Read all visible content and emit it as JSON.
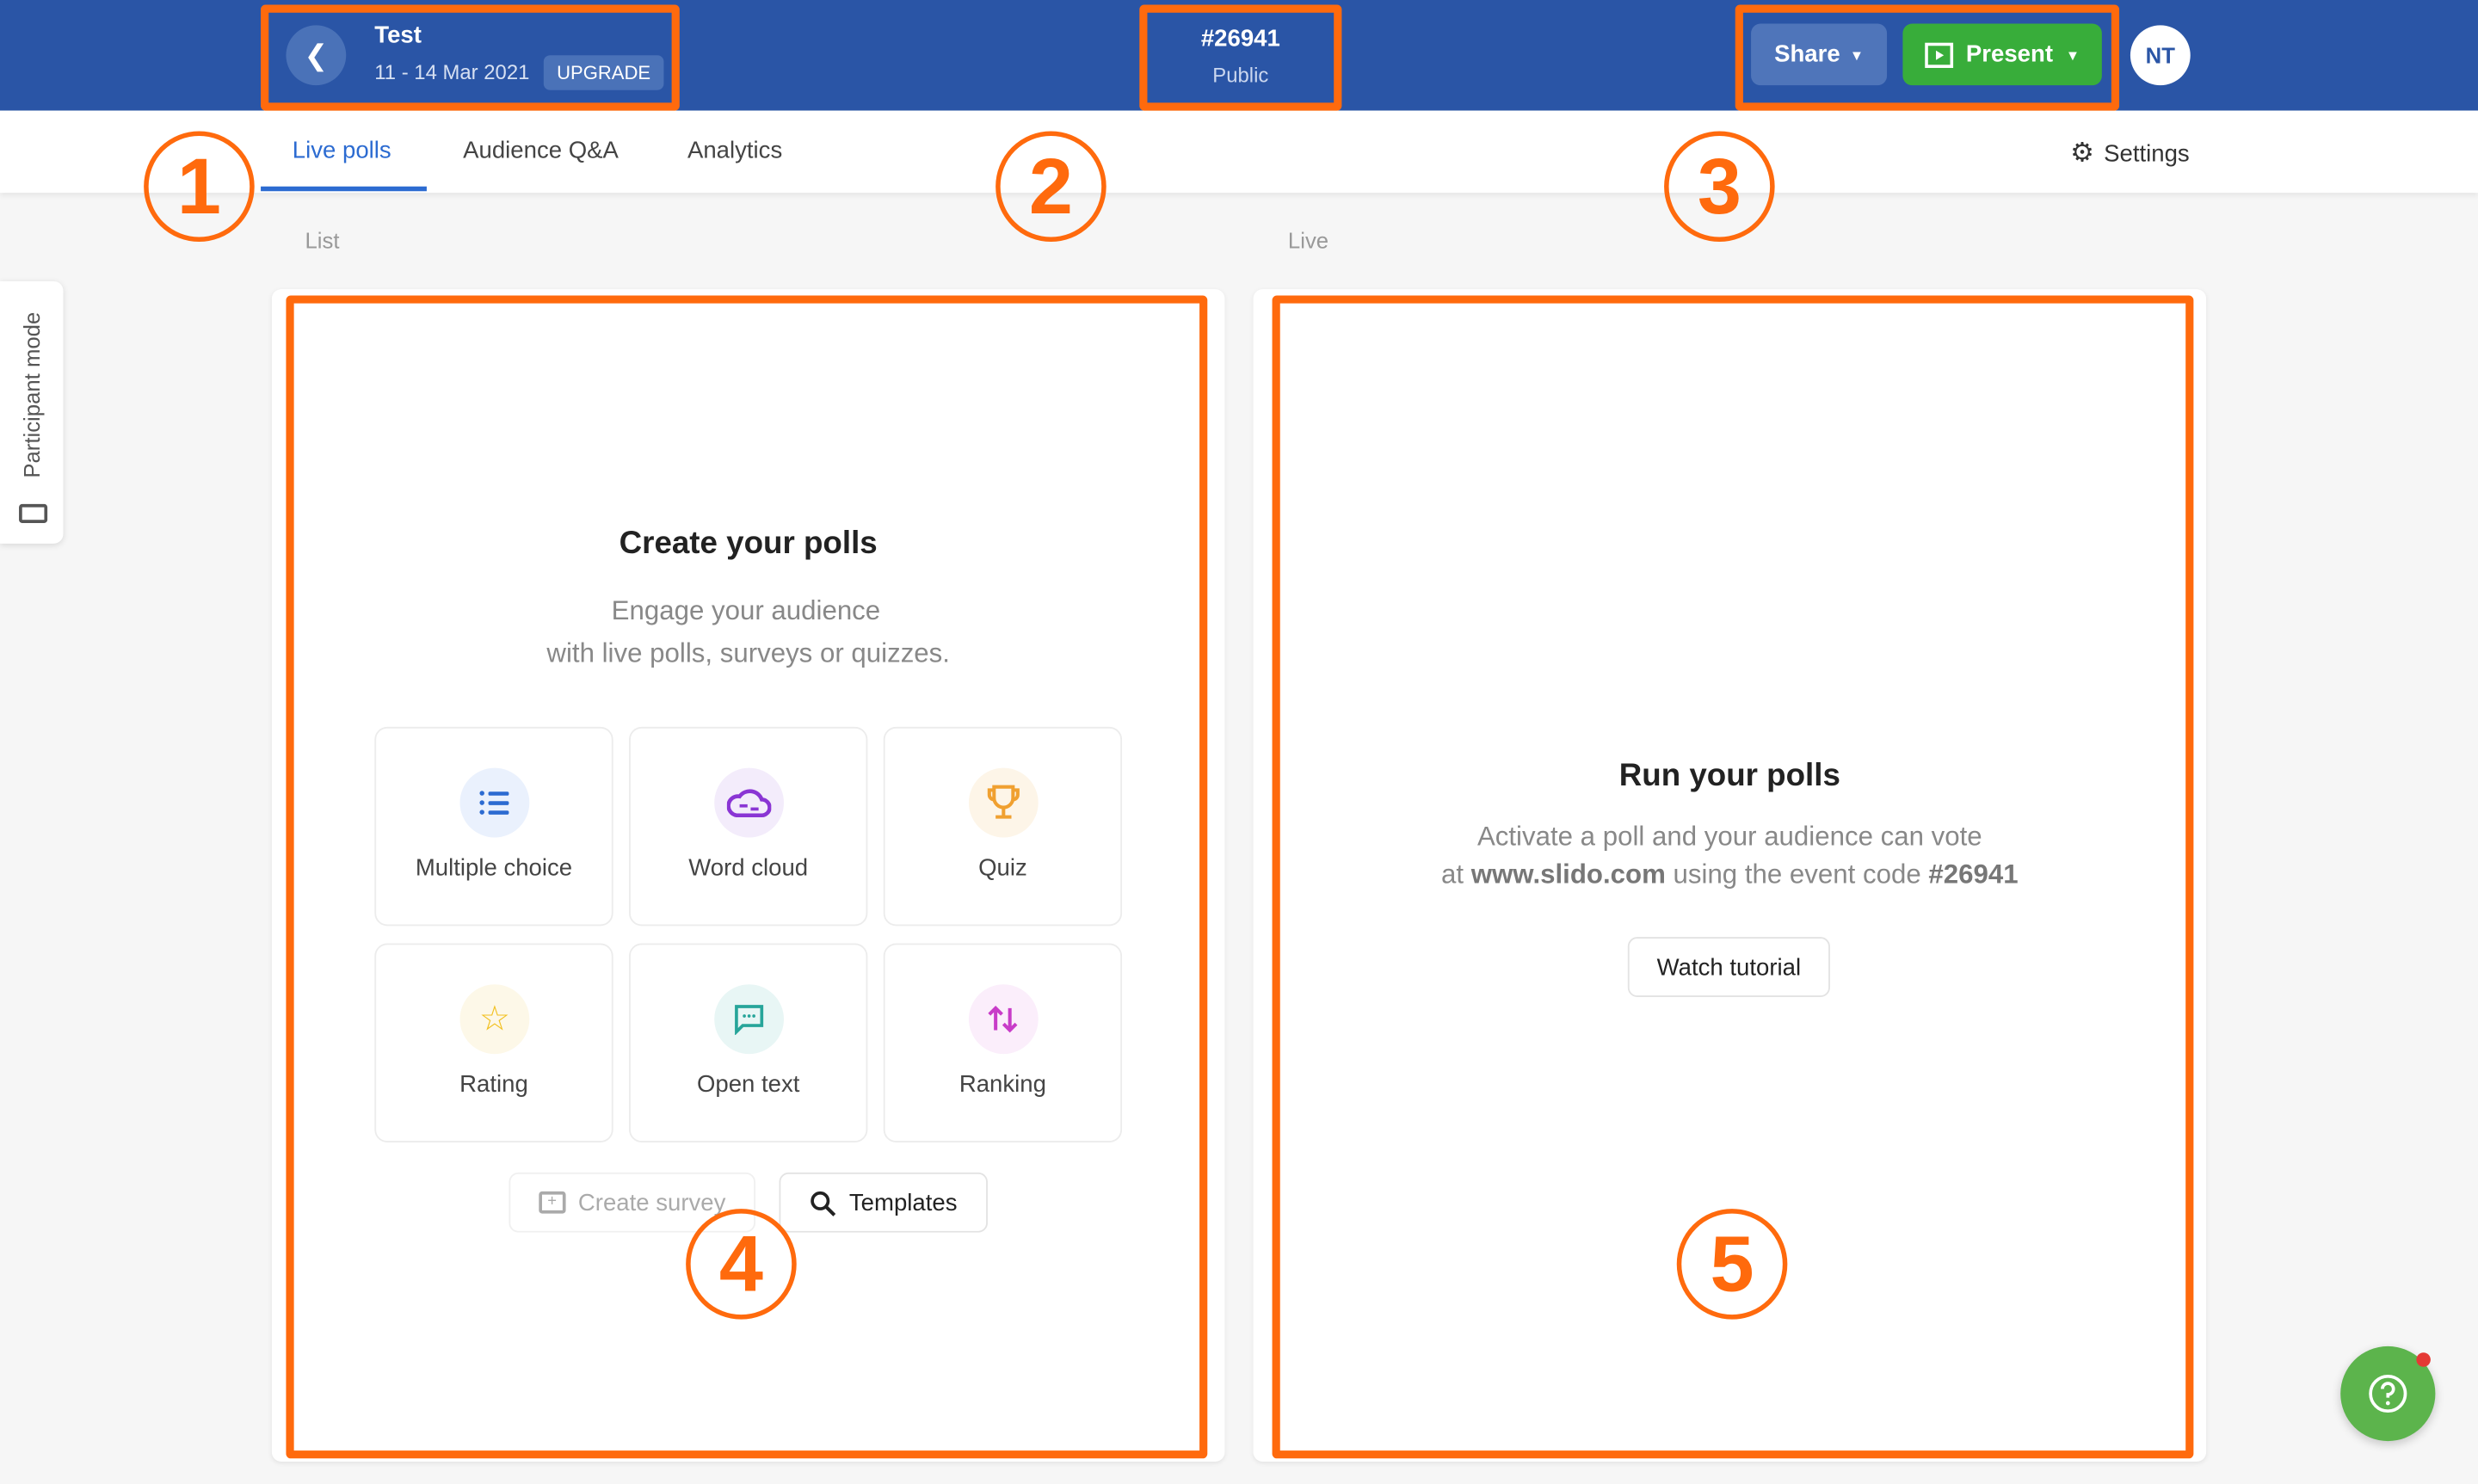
{
  "header": {
    "event_title": "Test",
    "event_dates": "11 - 14 Mar 2021",
    "upgrade_label": "UPGRADE",
    "event_code": "#26941",
    "visibility": "Public",
    "share_label": "Share",
    "present_label": "Present",
    "avatar_initials": "NT",
    "brand_color": "#2a55a6",
    "present_color": "#38ad3a"
  },
  "tabs": [
    {
      "label": "Live polls",
      "active": true
    },
    {
      "label": "Audience Q&A"
    },
    {
      "label": "Analytics"
    }
  ],
  "settings_label": "Settings",
  "side_tab": {
    "label": "Participant mode"
  },
  "list": {
    "section_label": "List",
    "title": "Create your polls",
    "subtitle_1": "Engage your audience",
    "subtitle_2": "with live polls, surveys or quizzes.",
    "poll_types": [
      {
        "label": "Multiple choice",
        "icon": "list-icon"
      },
      {
        "label": "Word cloud",
        "icon": "cloud-icon"
      },
      {
        "label": "Quiz",
        "icon": "trophy-icon"
      },
      {
        "label": "Rating",
        "icon": "star-icon"
      },
      {
        "label": "Open text",
        "icon": "chat-icon"
      },
      {
        "label": "Ranking",
        "icon": "sort-arrows-icon"
      }
    ],
    "create_survey_label": "Create survey",
    "templates_label": "Templates"
  },
  "live": {
    "section_label": "Live",
    "title": "Run your polls",
    "line_1": "Activate a poll and your audience can vote",
    "line_2_prefix": "at ",
    "url": "www.slido.com",
    "line_2_mid": " using the event code ",
    "code": "#26941",
    "watch_tutorial_label": "Watch tutorial"
  },
  "annotations": {
    "n1": "1",
    "n2": "2",
    "n3": "3",
    "n4": "4",
    "n5": "5",
    "color": "#ff6a0d"
  }
}
